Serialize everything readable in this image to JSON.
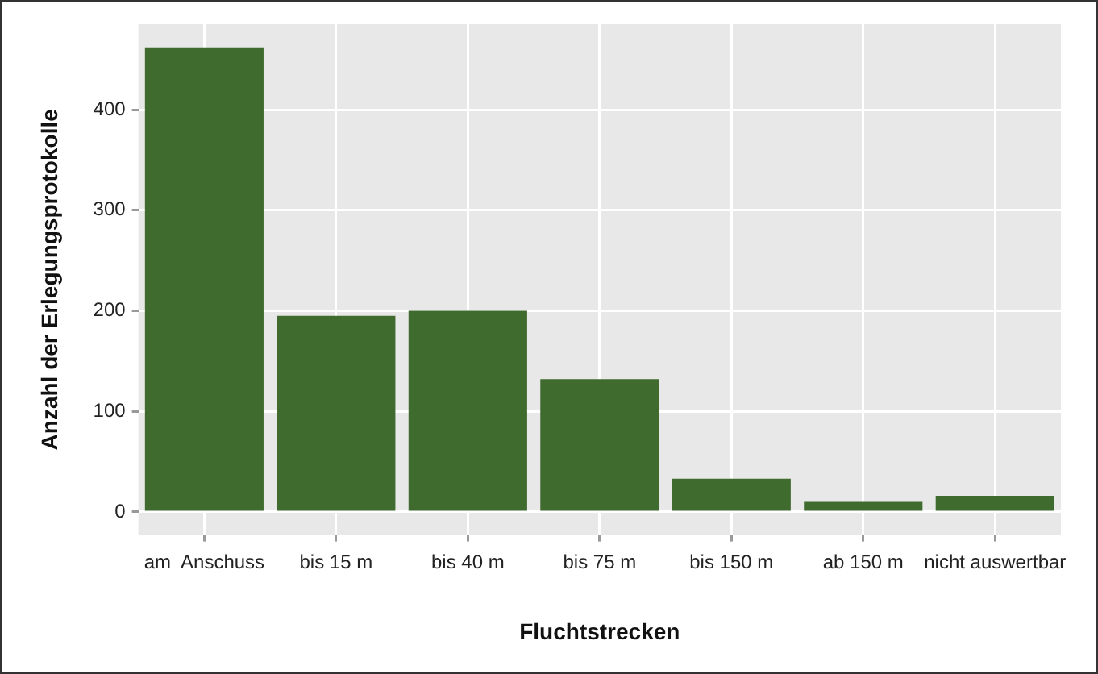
{
  "chart_data": {
    "type": "bar",
    "xlabel": "Fluchtstrecken",
    "ylabel": "Anzahl der Erlegungsprotokolle",
    "categories": [
      "am  Anschuss",
      "bis 15 m",
      "bis 40 m",
      "bis 75 m",
      "bis 150 m",
      "ab 150 m",
      "nicht auswertbar"
    ],
    "values": [
      462,
      195,
      200,
      132,
      33,
      10,
      16
    ],
    "color": "#406b2e",
    "ylim": [
      -23,
      485
    ],
    "yticks": [
      0,
      100,
      200,
      300,
      400
    ],
    "grid": true
  }
}
